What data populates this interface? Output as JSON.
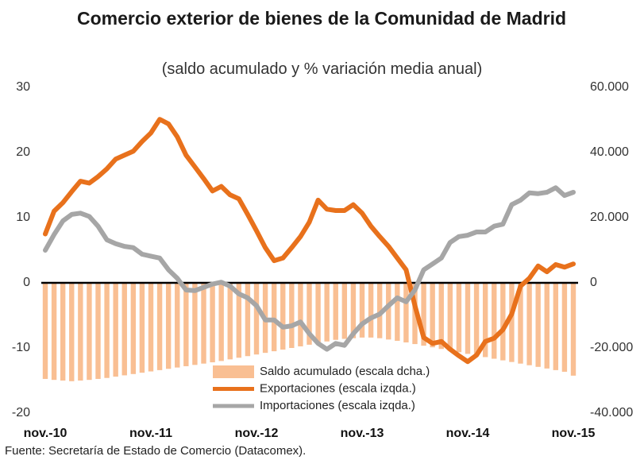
{
  "chart_data": {
    "type": "bar",
    "title": "Comercio exterior de bienes de la Comunidad de Madrid",
    "subtitle": "(saldo acumulado y % variación media anual)",
    "source": "Fuente: Secretaría de Estado de Comercio (Datacomex).",
    "categories": [
      "nov.-10",
      null,
      null,
      null,
      null,
      null,
      null,
      null,
      null,
      null,
      null,
      null,
      "nov.-11",
      null,
      null,
      null,
      null,
      null,
      null,
      null,
      null,
      null,
      null,
      null,
      "nov.-12",
      null,
      null,
      null,
      null,
      null,
      null,
      null,
      null,
      null,
      null,
      null,
      "nov.-13",
      null,
      null,
      null,
      null,
      null,
      null,
      null,
      null,
      null,
      null,
      null,
      "nov.-14",
      null,
      null,
      null,
      null,
      null,
      null,
      null,
      null,
      null,
      null,
      null,
      "nov.-15"
    ],
    "ylim": [
      -20,
      30
    ],
    "yticks": [
      -20,
      -10,
      0,
      10,
      20,
      30
    ],
    "y2lim": [
      -40000,
      60000
    ],
    "y2ticks": [
      {
        "value": -40000,
        "label": "-40.000"
      },
      {
        "value": -20000,
        "label": "-20.000"
      },
      {
        "value": 0,
        "label": "0"
      },
      {
        "value": 20000,
        "label": "20.000"
      },
      {
        "value": 40000,
        "label": "40.000"
      },
      {
        "value": 60000,
        "label": "60.000"
      }
    ],
    "legend": "lower center",
    "series": [
      {
        "name": "Saldo acumulado (escala dcha.)",
        "type": "bar",
        "axis": "y2",
        "color": "#f9bf93",
        "values": [
          -29500,
          -29800,
          -30000,
          -30200,
          -30000,
          -29800,
          -29500,
          -29200,
          -28800,
          -28400,
          -28000,
          -27600,
          -27200,
          -26800,
          -26400,
          -26000,
          -25600,
          -25200,
          -24800,
          -24400,
          -24000,
          -23500,
          -23000,
          -22500,
          -22000,
          -21500,
          -21000,
          -20500,
          -20000,
          -19500,
          -19000,
          -18500,
          -18000,
          -17500,
          -17200,
          -17000,
          -16800,
          -16800,
          -17000,
          -17400,
          -17800,
          -18300,
          -18800,
          -19300,
          -19800,
          -20300,
          -20800,
          -21300,
          -21800,
          -22300,
          -22800,
          -23300,
          -23800,
          -24300,
          -24800,
          -25300,
          -25800,
          -26300,
          -26800,
          -27300,
          -28500
        ]
      },
      {
        "name": "Exportaciones (escala izqda.)",
        "type": "line",
        "axis": "y",
        "color": "#e8711c",
        "values": [
          7.5,
          11,
          12.3,
          14,
          15.6,
          15.3,
          16.3,
          17.5,
          19,
          19.6,
          20.2,
          21.7,
          23,
          25.1,
          24.4,
          22.4,
          19.6,
          17.8,
          16,
          14.1,
          14.8,
          13.5,
          12.9,
          10.5,
          8,
          5.4,
          3.4,
          3.8,
          5.4,
          7.1,
          9.3,
          12.7,
          11.3,
          11.1,
          11.1,
          12,
          10.7,
          8.7,
          7.1,
          5.6,
          3.8,
          2,
          -3.5,
          -8.4,
          -9.3,
          -9,
          -10.2,
          -11.2,
          -12.1,
          -11.1,
          -9,
          -8.5,
          -7.2,
          -4.8,
          -0.5,
          0.7,
          2.6,
          1.7,
          2.8,
          2.4,
          2.9
        ]
      },
      {
        "name": "Importaciones (escala izqda.)",
        "type": "line",
        "axis": "y",
        "color": "#a6a6a6",
        "values": [
          5,
          7.4,
          9.5,
          10.5,
          10.7,
          10.2,
          8.7,
          6.6,
          6,
          5.6,
          5.4,
          4.4,
          4.1,
          3.8,
          2,
          0.7,
          -1.1,
          -1.2,
          -0.7,
          -0.2,
          0.1,
          -0.5,
          -1.7,
          -2.3,
          -3.5,
          -5.7,
          -5.7,
          -6.8,
          -6.6,
          -6,
          -7.8,
          -9.3,
          -10.2,
          -9.3,
          -9.6,
          -7.8,
          -6.3,
          -5.4,
          -4.8,
          -3.5,
          -2.3,
          -2.9,
          -1.1,
          2,
          2.9,
          3.8,
          6.2,
          7.1,
          7.3,
          7.8,
          7.8,
          8.7,
          9,
          12,
          12.7,
          13.8,
          13.7,
          13.9,
          14.6,
          13.4,
          13.9
        ]
      }
    ]
  }
}
